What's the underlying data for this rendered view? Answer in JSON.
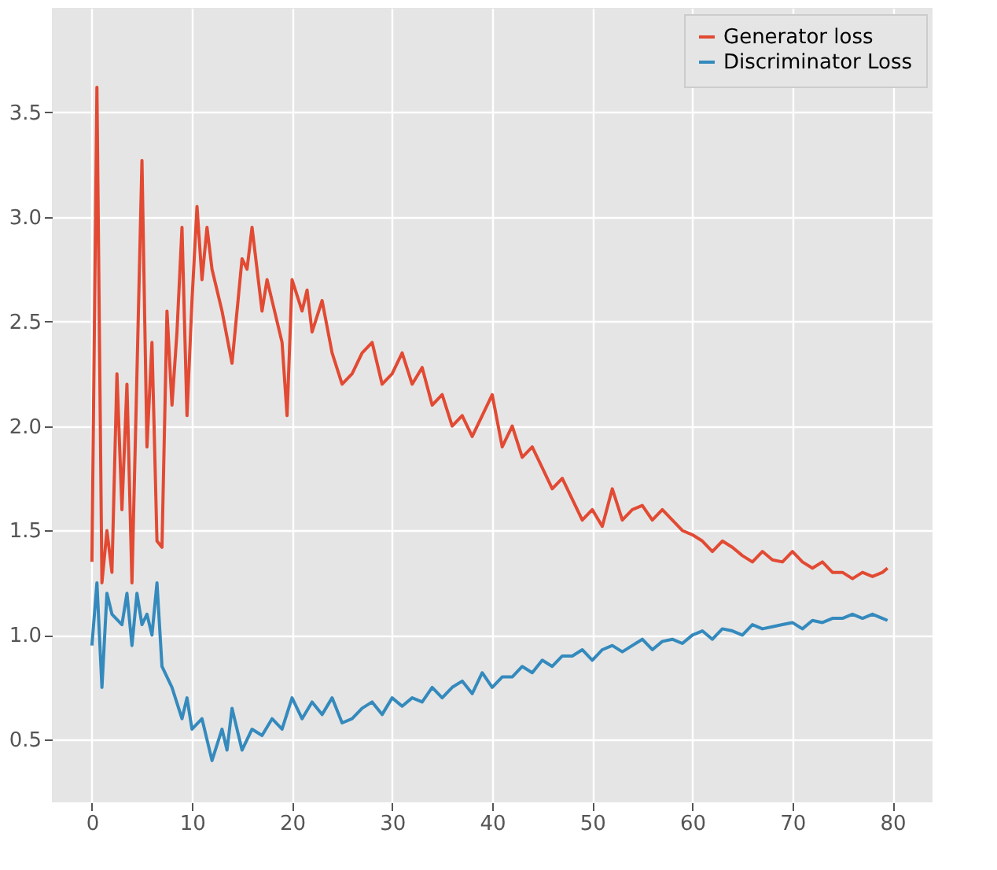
{
  "chart_data": {
    "type": "line",
    "xlim": [
      -4,
      84
    ],
    "ylim": [
      0.2,
      4.0
    ],
    "xticks": [
      0,
      10,
      20,
      30,
      40,
      50,
      60,
      70,
      80
    ],
    "yticks": [
      0.5,
      {
        "value": 1,
        "label": "1.0"
      },
      1.5,
      {
        "value": 2,
        "label": "2.0"
      },
      2.5,
      {
        "value": 3,
        "label": "3.0"
      },
      3.5
    ],
    "grid": true,
    "legend": "top right",
    "series": [
      {
        "name": "Generator loss",
        "color": "#e24a33",
        "x": [
          0,
          0.5,
          1,
          1.5,
          2,
          2.5,
          3,
          3.5,
          4,
          4.5,
          5,
          5.5,
          6,
          6.5,
          7,
          7.5,
          8,
          8.5,
          9,
          9.5,
          10,
          10.5,
          11,
          11.5,
          12,
          13,
          14,
          15,
          15.5,
          16,
          17,
          17.5,
          18,
          19,
          19.5,
          20,
          21,
          21.5,
          22,
          23,
          24,
          25,
          26,
          27,
          28,
          29,
          30,
          31,
          32,
          33,
          34,
          35,
          36,
          37,
          38,
          39,
          40,
          41,
          42,
          43,
          44,
          45,
          46,
          47,
          48,
          49,
          50,
          51,
          52,
          53,
          54,
          55,
          56,
          57,
          58,
          59,
          60,
          61,
          62,
          63,
          64,
          65,
          66,
          67,
          68,
          69,
          70,
          71,
          72,
          73,
          74,
          75,
          76,
          77,
          78,
          79,
          79.5
        ],
        "values": [
          1.35,
          3.62,
          1.25,
          1.5,
          1.3,
          2.25,
          1.6,
          2.2,
          1.25,
          2.25,
          3.27,
          1.9,
          2.4,
          1.45,
          1.42,
          2.55,
          2.1,
          2.45,
          2.95,
          2.05,
          2.6,
          3.05,
          2.7,
          2.95,
          2.75,
          2.55,
          2.3,
          2.8,
          2.75,
          2.95,
          2.55,
          2.7,
          2.6,
          2.4,
          2.05,
          2.7,
          2.55,
          2.65,
          2.45,
          2.6,
          2.35,
          2.2,
          2.25,
          2.35,
          2.4,
          2.2,
          2.25,
          2.35,
          2.2,
          2.28,
          2.1,
          2.15,
          2.0,
          2.05,
          1.95,
          2.05,
          2.15,
          1.9,
          2.0,
          1.85,
          1.9,
          1.8,
          1.7,
          1.75,
          1.65,
          1.55,
          1.6,
          1.52,
          1.7,
          1.55,
          1.6,
          1.62,
          1.55,
          1.6,
          1.55,
          1.5,
          1.48,
          1.45,
          1.4,
          1.45,
          1.42,
          1.38,
          1.35,
          1.4,
          1.36,
          1.35,
          1.4,
          1.35,
          1.32,
          1.35,
          1.3,
          1.3,
          1.27,
          1.3,
          1.28,
          1.3,
          1.32
        ]
      },
      {
        "name": "Discriminator Loss",
        "color": "#348abd",
        "x": [
          0,
          0.5,
          1,
          1.5,
          2,
          3,
          3.5,
          4,
          4.5,
          5,
          5.5,
          6,
          6.5,
          7,
          8,
          9,
          9.5,
          10,
          11,
          12,
          13,
          13.5,
          14,
          15,
          16,
          17,
          18,
          19,
          20,
          21,
          22,
          23,
          24,
          25,
          26,
          27,
          28,
          29,
          30,
          31,
          32,
          33,
          34,
          35,
          36,
          37,
          38,
          39,
          40,
          41,
          42,
          43,
          44,
          45,
          46,
          47,
          48,
          49,
          50,
          51,
          52,
          53,
          54,
          55,
          56,
          57,
          58,
          59,
          60,
          61,
          62,
          63,
          64,
          65,
          66,
          67,
          68,
          69,
          70,
          71,
          72,
          73,
          74,
          75,
          76,
          77,
          78,
          79,
          79.5
        ],
        "values": [
          0.95,
          1.25,
          0.75,
          1.2,
          1.1,
          1.05,
          1.2,
          0.95,
          1.2,
          1.05,
          1.1,
          1.0,
          1.25,
          0.85,
          0.75,
          0.6,
          0.7,
          0.55,
          0.6,
          0.4,
          0.55,
          0.45,
          0.65,
          0.45,
          0.55,
          0.52,
          0.6,
          0.55,
          0.7,
          0.6,
          0.68,
          0.62,
          0.7,
          0.58,
          0.6,
          0.65,
          0.68,
          0.62,
          0.7,
          0.66,
          0.7,
          0.68,
          0.75,
          0.7,
          0.75,
          0.78,
          0.72,
          0.82,
          0.75,
          0.8,
          0.8,
          0.85,
          0.82,
          0.88,
          0.85,
          0.9,
          0.9,
          0.93,
          0.88,
          0.93,
          0.95,
          0.92,
          0.95,
          0.98,
          0.93,
          0.97,
          0.98,
          0.96,
          1.0,
          1.02,
          0.98,
          1.03,
          1.02,
          1.0,
          1.05,
          1.03,
          1.04,
          1.05,
          1.06,
          1.03,
          1.07,
          1.06,
          1.08,
          1.08,
          1.1,
          1.08,
          1.1,
          1.08,
          1.07
        ]
      }
    ]
  }
}
